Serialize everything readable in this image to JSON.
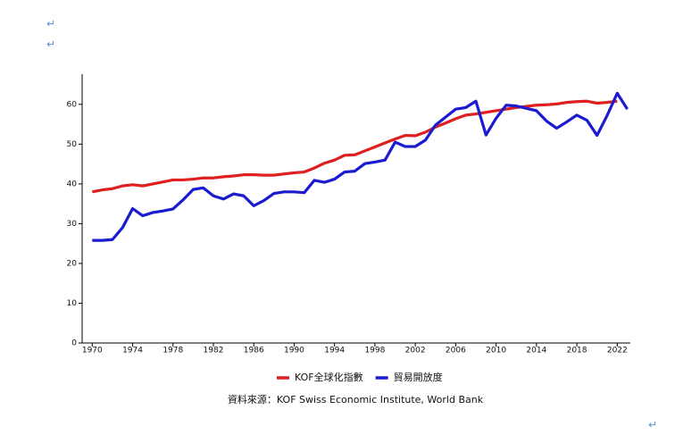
{
  "page_marks": [
    "↵",
    "↵",
    "↵"
  ],
  "chart_data": {
    "type": "line",
    "source": "資料來源：KOF Swiss Economic Institute, World Bank",
    "x": [
      1970,
      1971,
      1972,
      1973,
      1974,
      1975,
      1976,
      1977,
      1978,
      1979,
      1980,
      1981,
      1982,
      1983,
      1984,
      1985,
      1986,
      1987,
      1988,
      1989,
      1990,
      1991,
      1992,
      1993,
      1994,
      1995,
      1996,
      1997,
      1998,
      1999,
      2000,
      2001,
      2002,
      2003,
      2004,
      2005,
      2006,
      2007,
      2008,
      2009,
      2010,
      2011,
      2012,
      2013,
      2014,
      2015,
      2016,
      2017,
      2018,
      2019,
      2020,
      2021,
      2022,
      2023
    ],
    "series": [
      {
        "name": "KOF全球化指數",
        "color": "#e02020",
        "values": [
          38,
          38.5,
          38.8,
          39.5,
          39.8,
          39.5,
          40,
          40.5,
          41,
          41,
          41.2,
          41.5,
          41.5,
          41.8,
          42,
          42.3,
          42.3,
          42.2,
          42.2,
          42.5,
          42.8,
          43,
          44,
          45.2,
          46,
          47.2,
          47.3,
          48.3,
          49.3,
          50.3,
          51.3,
          52.2,
          52.1,
          53,
          54.3,
          55.3,
          56.4,
          57.3,
          57.6,
          58,
          58.4,
          58.8,
          59.2,
          59.5,
          59.8,
          59.9,
          60.1,
          60.5,
          60.7,
          60.8,
          60.3,
          60.5,
          60.8,
          null
        ]
      },
      {
        "name": "貿易開放度",
        "color": "#1a1ad0",
        "values": [
          25.8,
          25.8,
          26,
          29,
          33.8,
          32,
          32.8,
          33.2,
          33.7,
          36,
          38.6,
          39,
          37,
          36.2,
          37.5,
          37,
          34.5,
          35.8,
          37.6,
          38,
          38,
          37.8,
          40.9,
          40.4,
          41.2,
          43,
          43.2,
          45.1,
          45.5,
          46,
          50.5,
          49.4,
          49.4,
          51,
          54.8,
          56.8,
          58.8,
          59.2,
          60.8,
          52.3,
          56.5,
          59.8,
          59.6,
          59,
          58.4,
          55.8,
          54,
          55.6,
          57.3,
          56,
          52.2,
          57.2,
          62.8,
          58.8
        ]
      }
    ],
    "xlim": [
      1969,
      2023.3
    ],
    "ylim": [
      0,
      67.6
    ],
    "xticks": [
      1970,
      1974,
      1978,
      1982,
      1986,
      1990,
      1994,
      1998,
      2002,
      2006,
      2010,
      2014,
      2018,
      2022
    ],
    "yticks": [
      0,
      10,
      20,
      30,
      40,
      50,
      60
    ],
    "legend": "bottom"
  }
}
